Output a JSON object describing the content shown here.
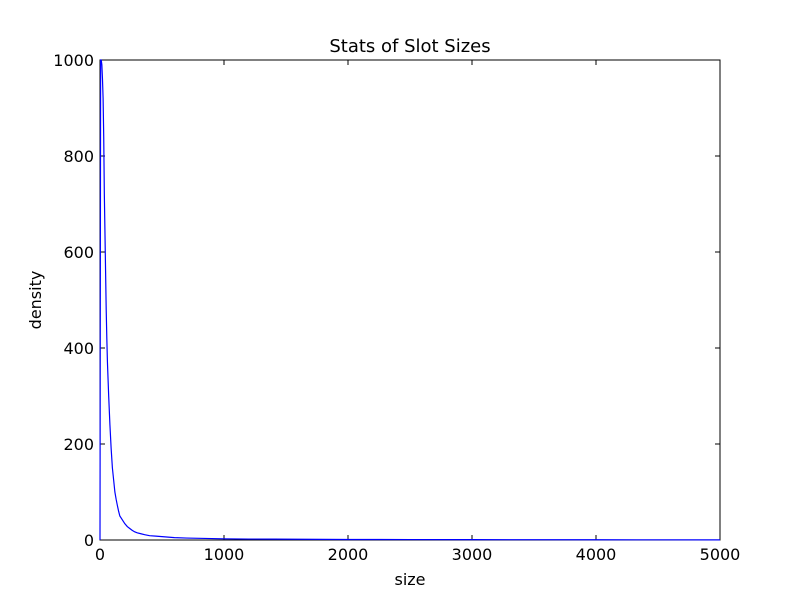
{
  "chart_data": {
    "type": "line",
    "title": "Stats of Slot Sizes",
    "xlabel": "size",
    "ylabel": "density",
    "xlim": [
      0,
      5000
    ],
    "ylim": [
      0,
      1000
    ],
    "xticks": [
      0,
      1000,
      2000,
      3000,
      4000,
      5000
    ],
    "yticks": [
      0,
      200,
      400,
      600,
      800,
      1000
    ],
    "grid": false,
    "line_color": "#0000ff",
    "series": [
      {
        "x": [
          0,
          5,
          10,
          15,
          20,
          25,
          30,
          35,
          40,
          45,
          50,
          55,
          60,
          70,
          80,
          90,
          100,
          110,
          120,
          130,
          140,
          150,
          160,
          180,
          200,
          220,
          240,
          260,
          280,
          300,
          330,
          360,
          400,
          450,
          500,
          550,
          600,
          700,
          800,
          900,
          1000,
          1200,
          1400,
          1600,
          1800,
          2000,
          2500,
          3000,
          3500,
          4000,
          4500,
          5000
        ],
        "y": [
          0,
          1000,
          1000,
          990,
          960,
          920,
          840,
          720,
          640,
          560,
          480,
          420,
          370,
          300,
          240,
          190,
          150,
          125,
          100,
          85,
          72,
          60,
          50,
          42,
          34,
          28,
          24,
          20,
          17,
          15,
          13,
          11,
          9,
          8,
          7,
          6,
          5,
          4,
          3.5,
          3,
          2.5,
          2,
          1.8,
          1.5,
          1.3,
          1.1,
          0.9,
          0.7,
          0.6,
          0.5,
          0.4,
          0.3
        ]
      }
    ]
  }
}
